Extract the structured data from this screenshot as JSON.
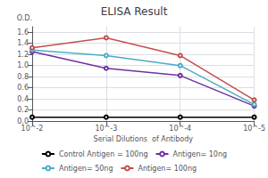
{
  "chart_data": {
    "type": "line",
    "title": "ELISA Result",
    "ylabel": "O.D.",
    "xlabel": "Serial Dilutions  of Antibody",
    "x": [
      -2,
      -3,
      -4,
      -5
    ],
    "xlim": [
      -2,
      -5
    ],
    "xticks": [
      {
        "value": -2,
        "label": "10^-2"
      },
      {
        "value": -3,
        "label": "10^-3"
      },
      {
        "value": -4,
        "label": "10^-4"
      },
      {
        "value": -5,
        "label": "10^-5"
      }
    ],
    "ylim": [
      0,
      1.7
    ],
    "yticks": [
      {
        "value": 0,
        "label": "0.0"
      },
      0.2,
      0.4,
      0.6,
      0.8,
      {
        "value": 1.0,
        "label": "1.0"
      },
      1.2,
      1.4,
      1.6
    ],
    "grid": true,
    "legend": "bottom",
    "series": [
      {
        "name": "Control Antigen = 100ng",
        "color": "#000000",
        "values": [
          0.07,
          0.07,
          0.07,
          0.07
        ]
      },
      {
        "name": "Antigen= 10ng",
        "color": "#7030a0",
        "values": [
          1.25,
          0.95,
          0.82,
          0.27
        ]
      },
      {
        "name": "Antigen= 50ng",
        "color": "#4bacc6",
        "values": [
          1.28,
          1.18,
          1.0,
          0.3
        ]
      },
      {
        "name": "Antigen= 100ng",
        "color": "#c0504d",
        "values": [
          1.32,
          1.5,
          1.18,
          0.38
        ]
      }
    ]
  }
}
